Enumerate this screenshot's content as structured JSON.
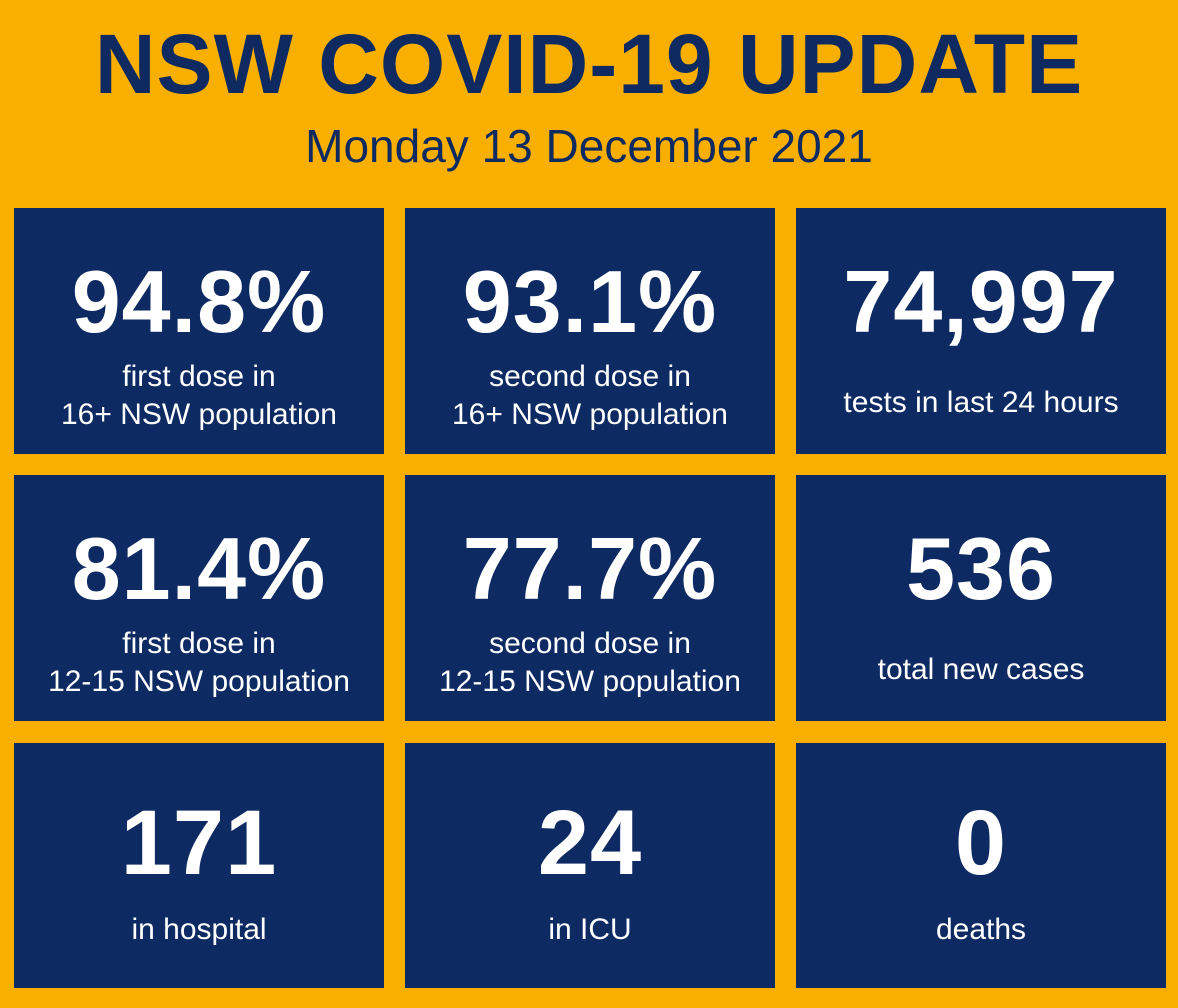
{
  "header": {
    "title": "NSW COVID-19 UPDATE",
    "date": "Monday 13 December 2021"
  },
  "stats": [
    {
      "value": "94.8%",
      "label_line1": "first dose in",
      "label_line2": "16+ NSW population"
    },
    {
      "value": "93.1%",
      "label_line1": "second dose in",
      "label_line2": "16+ NSW population"
    },
    {
      "value": "74,997",
      "label_line1": "tests in last 24 hours"
    },
    {
      "value": "81.4%",
      "label_line1": "first dose in",
      "label_line2": "12-15 NSW population"
    },
    {
      "value": "77.7%",
      "label_line1": "second dose in",
      "label_line2": "12-15 NSW population"
    },
    {
      "value": "536",
      "label_line1": "total new cases"
    },
    {
      "value": "171",
      "label_line1": "in hospital"
    },
    {
      "value": "24",
      "label_line1": "in ICU"
    },
    {
      "value": "0",
      "label_line1": "deaths"
    }
  ],
  "colors": {
    "background": "#F9AF00",
    "tile": "#0E2A63",
    "title_text": "#0E2A60",
    "tile_text": "#FFFFFF"
  }
}
